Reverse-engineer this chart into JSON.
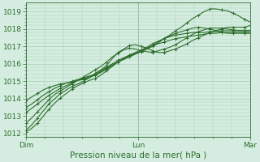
{
  "xlabel": "Pression niveau de la mer( hPa )",
  "bg_color": "#d5ede0",
  "grid_color": "#a8ccb8",
  "line_color": "#2d6e2d",
  "ylim": [
    1011.8,
    1019.5
  ],
  "yticks": [
    1012,
    1013,
    1014,
    1015,
    1016,
    1017,
    1018,
    1019
  ],
  "xtick_labels": [
    "Dim",
    "Lun",
    "Mar"
  ],
  "xtick_positions": [
    0,
    48,
    96
  ],
  "total_hours": 96,
  "series": [
    [
      1012.2,
      1012.5,
      1012.9,
      1013.3,
      1013.7,
      1014.0,
      1014.3,
      1014.5,
      1014.7,
      1014.85,
      1015.0,
      1015.2,
      1015.45,
      1015.65,
      1015.9,
      1016.3,
      1016.65,
      1016.85,
      1017.05,
      1017.1,
      1017.0,
      1016.9,
      1016.75,
      1016.65,
      1016.65,
      1016.75,
      1016.85,
      1017.0,
      1017.15,
      1017.35,
      1017.5,
      1017.65,
      1017.8,
      1017.9,
      1018.0,
      1018.1,
      1018.1,
      1018.1,
      1018.1,
      1018.2
    ],
    [
      1012.6,
      1012.9,
      1013.25,
      1013.6,
      1013.95,
      1014.25,
      1014.45,
      1014.65,
      1014.85,
      1015.05,
      1015.25,
      1015.45,
      1015.65,
      1015.85,
      1016.1,
      1016.4,
      1016.6,
      1016.8,
      1016.9,
      1016.85,
      1016.75,
      1016.7,
      1016.65,
      1016.75,
      1016.85,
      1016.95,
      1017.1,
      1017.3,
      1017.5,
      1017.7,
      1017.85,
      1017.95,
      1018.05,
      1018.05,
      1018.05,
      1018.0,
      1017.95,
      1017.9,
      1017.9,
      1017.9
    ],
    [
      1012.1,
      1012.3,
      1012.6,
      1013.0,
      1013.4,
      1013.75,
      1014.05,
      1014.3,
      1014.55,
      1014.75,
      1014.9,
      1015.05,
      1015.15,
      1015.35,
      1015.6,
      1015.85,
      1016.1,
      1016.3,
      1016.5,
      1016.6,
      1016.7,
      1016.85,
      1017.0,
      1017.2,
      1017.45,
      1017.65,
      1017.9,
      1018.1,
      1018.35,
      1018.6,
      1018.8,
      1019.0,
      1019.15,
      1019.15,
      1019.1,
      1019.05,
      1018.9,
      1018.75,
      1018.55,
      1018.4
    ],
    [
      1013.2,
      1013.45,
      1013.7,
      1013.95,
      1014.2,
      1014.4,
      1014.6,
      1014.75,
      1014.9,
      1015.05,
      1015.15,
      1015.25,
      1015.35,
      1015.5,
      1015.7,
      1015.9,
      1016.1,
      1016.25,
      1016.4,
      1016.55,
      1016.7,
      1016.85,
      1017.05,
      1017.25,
      1017.45,
      1017.6,
      1017.75,
      1017.85,
      1017.95,
      1018.05,
      1018.1,
      1018.05,
      1018.0,
      1017.9,
      1017.8,
      1017.75,
      1017.75,
      1017.75,
      1017.75,
      1017.75
    ],
    [
      1013.5,
      1013.7,
      1013.95,
      1014.2,
      1014.4,
      1014.6,
      1014.75,
      1014.9,
      1015.0,
      1015.1,
      1015.2,
      1015.3,
      1015.4,
      1015.6,
      1015.8,
      1016.0,
      1016.2,
      1016.35,
      1016.5,
      1016.65,
      1016.8,
      1016.95,
      1017.15,
      1017.3,
      1017.45,
      1017.55,
      1017.65,
      1017.7,
      1017.75,
      1017.8,
      1017.8,
      1017.8,
      1017.85,
      1017.85,
      1017.9,
      1017.9,
      1017.9,
      1017.9,
      1017.9,
      1017.9
    ],
    [
      1013.9,
      1014.1,
      1014.3,
      1014.5,
      1014.65,
      1014.75,
      1014.85,
      1014.9,
      1014.95,
      1015.05,
      1015.1,
      1015.2,
      1015.35,
      1015.55,
      1015.75,
      1015.95,
      1016.1,
      1016.3,
      1016.45,
      1016.6,
      1016.75,
      1016.9,
      1017.05,
      1017.15,
      1017.25,
      1017.35,
      1017.45,
      1017.5,
      1017.55,
      1017.6,
      1017.65,
      1017.7,
      1017.75,
      1017.75,
      1017.8,
      1017.8,
      1017.8,
      1017.8,
      1017.8,
      1017.8
    ]
  ],
  "marker_every": 2,
  "xlabel_fontsize": 7.5,
  "tick_fontsize": 6.5,
  "linewidth": 0.8
}
